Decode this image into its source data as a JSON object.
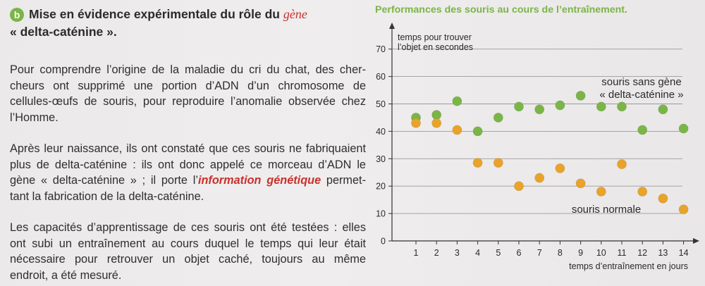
{
  "section": {
    "badge": "b",
    "title_part1": "Mise en évidence expérimentale du rôle du",
    "title_gene": "gène",
    "title_part2": "« delta-caténine »."
  },
  "paragraphs": {
    "p1_lines": [
      "Pour comprendre l’origine de la maladie du cri du chat, des cher-",
      "cheurs ont supprimé une portion d’ADN d’un chromosome de",
      "cellules-œufs de souris, pour reproduire l’anomalie observée chez",
      "l’Homme."
    ],
    "p2_lines": [
      "Après leur naissance, ils ont constaté que ces souris ne fabriquaient",
      "plus de delta-caténine : ils ont donc appelé ce morceau d’ADN le",
      "gène « delta-caténine » ; il porte l’",
      "information génétique",
      " permet-",
      "tant la fabrication de la delta-caténine."
    ],
    "p3_lines": [
      "Les capacités d’apprentissage de ces souris ont été testées : elles",
      "ont subi un entraînement au cours duquel le temps qui leur était",
      "nécessaire pour retrouver un objet caché, toujours au même",
      "endroit, a été mesuré."
    ]
  },
  "chart_data": {
    "type": "scatter",
    "title": "Performances des souris au cours de l’entraînement.",
    "ylabel_lines": [
      "temps pour trouver",
      "l’objet en secondes"
    ],
    "xlabel": "temps d’entraînement en jours",
    "x": [
      1,
      2,
      3,
      4,
      5,
      6,
      7,
      8,
      9,
      10,
      11,
      12,
      13,
      14
    ],
    "x_ticks": [
      "1",
      "2",
      "3",
      "4",
      "5",
      "6",
      "7",
      "8",
      "9",
      "10",
      "11",
      "12",
      "13",
      "14"
    ],
    "y_ticks": [
      "0",
      "10",
      "20",
      "30",
      "40",
      "50",
      "60",
      "70"
    ],
    "ylim": [
      0,
      75
    ],
    "grid": true,
    "series": [
      {
        "name_lines": [
          "souris sans gène",
          "« delta-caténine »"
        ],
        "color": "#7ab547",
        "values": [
          45,
          46,
          51,
          40,
          45,
          49,
          48,
          49.5,
          53,
          49,
          49,
          40.5,
          48,
          41
        ]
      },
      {
        "name_lines": [
          "souris normale"
        ],
        "color": "#e9a22a",
        "values": [
          43,
          43,
          40.5,
          28.5,
          28.5,
          20,
          23,
          26.5,
          21,
          18,
          28,
          18,
          15.5,
          11.5
        ]
      }
    ]
  }
}
